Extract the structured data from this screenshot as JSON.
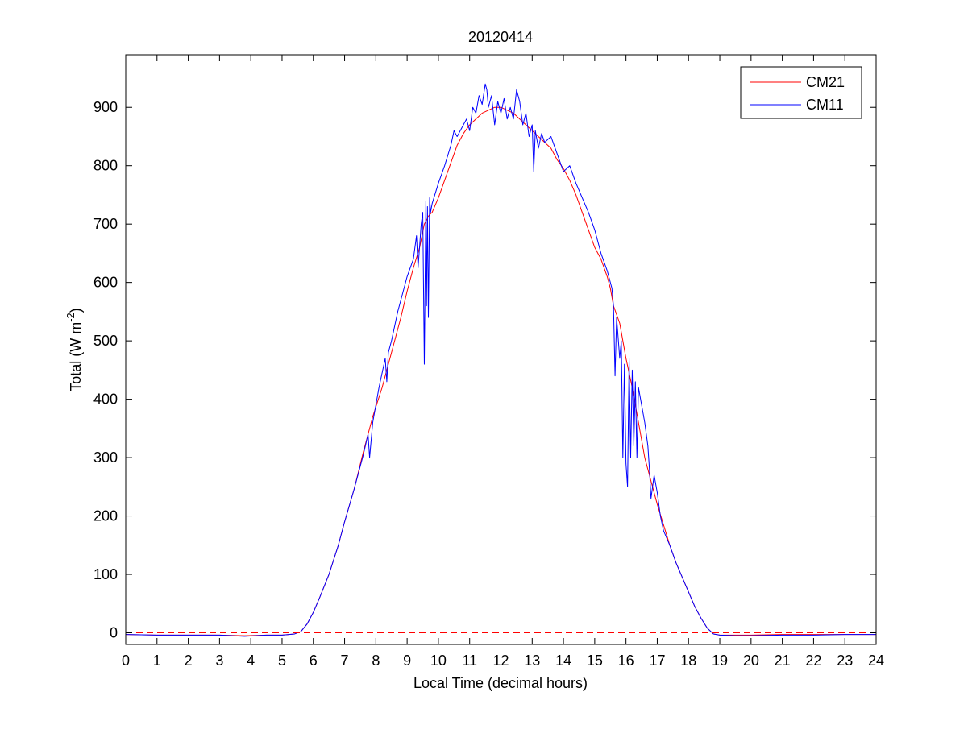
{
  "figure": {
    "title": "20120414",
    "xlabel": "Local Time (decimal hours)",
    "ylabel_main": "Total (W m",
    "ylabel_sup": "-2",
    "ylabel_close": ")"
  },
  "legend": {
    "entries": [
      {
        "label": "CM21",
        "color": "#ff0000"
      },
      {
        "label": "CM11",
        "color": "#0000ff"
      }
    ],
    "placement": "top-right"
  },
  "chart_data": {
    "type": "line",
    "title": "20120414",
    "xlabel": "Local Time (decimal hours)",
    "ylabel": "Total (W m-2)",
    "xlim": [
      0,
      24
    ],
    "ylim": [
      -20,
      990
    ],
    "xticks": [
      0,
      1,
      2,
      3,
      4,
      5,
      6,
      7,
      8,
      9,
      10,
      11,
      12,
      13,
      14,
      15,
      16,
      17,
      18,
      19,
      20,
      21,
      22,
      23,
      24
    ],
    "yticks": [
      0,
      100,
      200,
      300,
      400,
      500,
      600,
      700,
      800,
      900
    ],
    "grid": false,
    "reference_line": {
      "y": 0,
      "style": "dashed",
      "color": "#ff0000"
    },
    "series": [
      {
        "name": "CM21",
        "color": "#ff0000",
        "x": [
          0,
          1,
          2,
          3,
          3.8,
          4.5,
          5,
          5.4,
          5.6,
          5.8,
          6,
          6.2,
          6.5,
          6.8,
          7,
          7.3,
          7.6,
          7.9,
          8.2,
          8.5,
          8.8,
          9.0,
          9.2,
          9.4,
          9.55,
          9.7,
          9.8,
          10.0,
          10.2,
          10.4,
          10.6,
          10.8,
          11.0,
          11.2,
          11.4,
          11.6,
          11.8,
          12.0,
          12.2,
          12.4,
          12.6,
          12.8,
          13.0,
          13.2,
          13.4,
          13.6,
          13.8,
          14.0,
          14.2,
          14.4,
          14.6,
          14.8,
          15.0,
          15.2,
          15.4,
          15.5,
          15.6,
          15.8,
          16.0,
          16.2,
          16.4,
          16.6,
          16.8,
          17.0,
          17.2,
          17.4,
          17.6,
          17.8,
          18.0,
          18.2,
          18.4,
          18.6,
          18.8,
          19,
          19.5,
          20,
          21,
          22,
          23,
          24
        ],
        "y": [
          -3,
          -4,
          -4,
          -4,
          -5,
          -4,
          -4,
          -2,
          2,
          15,
          35,
          60,
          100,
          150,
          190,
          245,
          310,
          370,
          420,
          480,
          540,
          585,
          625,
          660,
          700,
          715,
          720,
          745,
          775,
          805,
          835,
          855,
          870,
          880,
          890,
          895,
          900,
          900,
          895,
          890,
          880,
          870,
          860,
          850,
          840,
          830,
          810,
          795,
          775,
          750,
          720,
          690,
          660,
          640,
          610,
          590,
          560,
          530,
          470,
          420,
          360,
          300,
          260,
          220,
          185,
          150,
          120,
          95,
          70,
          45,
          25,
          8,
          -2,
          -4,
          -4,
          -4,
          -3,
          -3,
          -3,
          -3
        ]
      },
      {
        "name": "CM11",
        "color": "#0000ff",
        "x": [
          0,
          1,
          2,
          3,
          3.8,
          4.5,
          5,
          5.4,
          5.6,
          5.8,
          6,
          6.2,
          6.5,
          6.8,
          7,
          7.3,
          7.6,
          7.75,
          7.8,
          7.9,
          8.1,
          8.3,
          8.35,
          8.4,
          8.5,
          8.7,
          8.9,
          9.0,
          9.2,
          9.3,
          9.35,
          9.45,
          9.5,
          9.55,
          9.6,
          9.62,
          9.65,
          9.68,
          9.72,
          9.75,
          9.8,
          10.0,
          10.2,
          10.4,
          10.5,
          10.6,
          10.8,
          10.9,
          11.0,
          11.1,
          11.2,
          11.3,
          11.4,
          11.5,
          11.55,
          11.6,
          11.7,
          11.8,
          11.9,
          12.0,
          12.1,
          12.2,
          12.3,
          12.4,
          12.5,
          12.6,
          12.7,
          12.8,
          12.9,
          13.0,
          13.05,
          13.1,
          13.2,
          13.3,
          13.4,
          13.6,
          13.8,
          14.0,
          14.2,
          14.4,
          14.6,
          14.8,
          15.0,
          15.2,
          15.4,
          15.55,
          15.6,
          15.65,
          15.7,
          15.8,
          15.85,
          15.9,
          15.95,
          16.0,
          16.05,
          16.1,
          16.15,
          16.2,
          16.25,
          16.3,
          16.35,
          16.4,
          16.5,
          16.6,
          16.7,
          16.75,
          16.8,
          16.9,
          17.0,
          17.1,
          17.2,
          17.4,
          17.6,
          17.8,
          18.0,
          18.2,
          18.4,
          18.6,
          18.8,
          19,
          19.5,
          20,
          21,
          22,
          23,
          24
        ],
        "y": [
          -3,
          -4,
          -4,
          -4,
          -6,
          -4,
          -4,
          -2,
          2,
          15,
          35,
          60,
          100,
          150,
          190,
          245,
          305,
          340,
          300,
          360,
          420,
          470,
          430,
          480,
          500,
          550,
          590,
          610,
          640,
          680,
          625,
          700,
          720,
          460,
          740,
          560,
          730,
          540,
          745,
          720,
          735,
          770,
          800,
          835,
          860,
          850,
          870,
          880,
          860,
          900,
          890,
          920,
          905,
          940,
          930,
          900,
          920,
          870,
          910,
          890,
          915,
          880,
          900,
          880,
          930,
          910,
          870,
          890,
          850,
          870,
          790,
          860,
          830,
          855,
          840,
          850,
          820,
          790,
          800,
          770,
          745,
          720,
          690,
          650,
          620,
          590,
          560,
          440,
          540,
          470,
          500,
          300,
          460,
          290,
          250,
          470,
          300,
          450,
          320,
          430,
          300,
          420,
          390,
          360,
          320,
          280,
          230,
          270,
          240,
          200,
          175,
          150,
          120,
          95,
          70,
          45,
          25,
          8,
          -2,
          -4,
          -5,
          -5,
          -4,
          -4,
          -3,
          -3
        ]
      }
    ]
  }
}
